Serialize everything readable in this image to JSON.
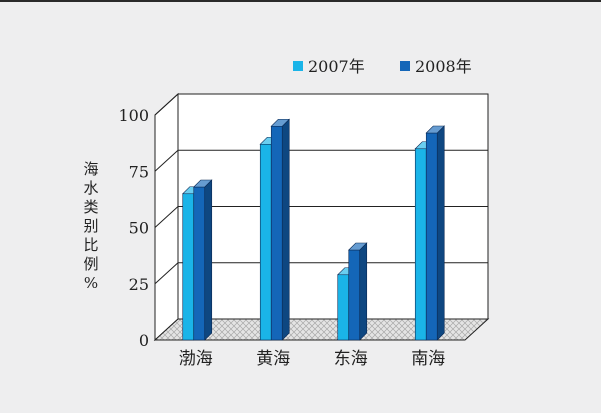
{
  "chart_data": {
    "type": "bar",
    "categories": [
      "渤海",
      "黄海",
      "东海",
      "南海"
    ],
    "series": [
      {
        "name": "2007年",
        "values": [
          65,
          87,
          29,
          85
        ],
        "color": "#1ab4e8"
      },
      {
        "name": "2008年",
        "values": [
          68,
          95,
          40,
          92
        ],
        "color": "#1466b8"
      }
    ],
    "ylabel": [
      "海",
      "水",
      "类",
      "别",
      "比",
      "例",
      "%"
    ],
    "ylim": [
      0,
      100
    ],
    "yticks": [
      0,
      25,
      50,
      75,
      100
    ],
    "grid": true,
    "legend": "top-right",
    "style": "3d"
  }
}
